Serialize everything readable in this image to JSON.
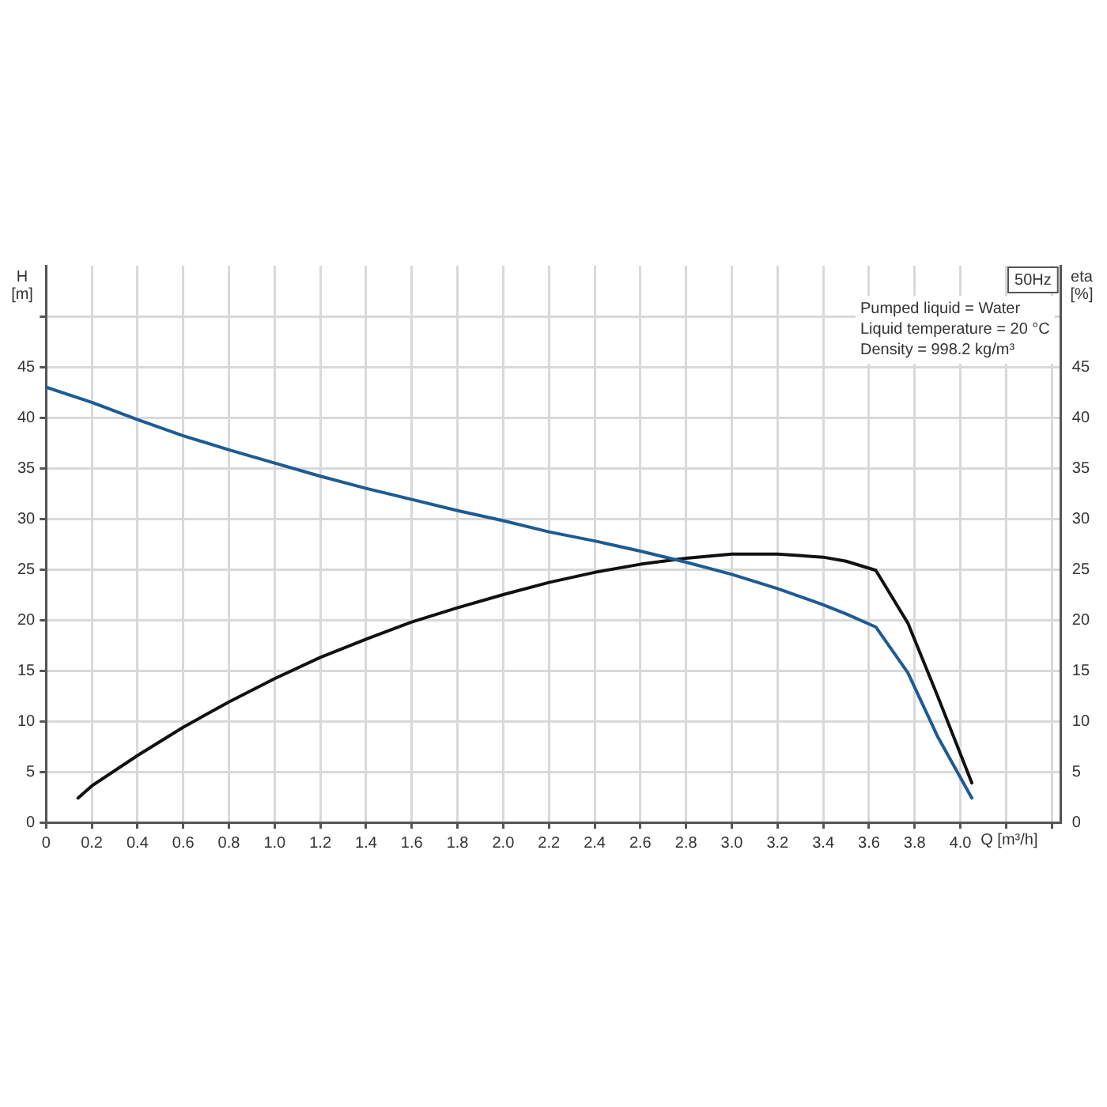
{
  "chart_data": {
    "type": "line",
    "xlabel": "Q [m³/h]",
    "ylabel": "H [m]",
    "y2label": "eta [%]",
    "annotations": [
      "50Hz",
      "Pumped liquid = Water",
      "Liquid temperature = 20 °C",
      "Density = 998.2 kg/m³"
    ],
    "xlim": [
      0,
      4.44
    ],
    "xticks": [
      0,
      {
        "value": 0.2,
        "label": "0.2"
      },
      {
        "value": 0.4,
        "label": "0.4"
      },
      {
        "value": 0.6,
        "label": "0.6"
      },
      {
        "value": 0.8,
        "label": "0.8"
      },
      {
        "value": 1,
        "label": "1.0"
      },
      {
        "value": 1.2,
        "label": "1.2"
      },
      {
        "value": 1.4,
        "label": "1.4"
      },
      {
        "value": 1.6,
        "label": "1.6"
      },
      {
        "value": 1.8,
        "label": "1.8"
      },
      {
        "value": 2,
        "label": "2.0"
      },
      {
        "value": 2.2,
        "label": "2.2"
      },
      {
        "value": 2.4,
        "label": "2.4"
      },
      {
        "value": 2.6,
        "label": "2.6"
      },
      {
        "value": 2.8,
        "label": "2.8"
      },
      {
        "value": 3,
        "label": "3.0"
      },
      {
        "value": 3.2,
        "label": "3.2"
      },
      {
        "value": 3.4,
        "label": "3.4"
      },
      {
        "value": 3.6,
        "label": "3.6"
      },
      {
        "value": 3.8,
        "label": "3.8"
      },
      {
        "value": 4,
        "label": "4.0"
      },
      {
        "value": 4.2,
        "label": null
      },
      {
        "value": 4.4,
        "label": null
      }
    ],
    "ylim": [
      0,
      55
    ],
    "yticks": [
      0,
      5,
      10,
      15,
      20,
      25,
      30,
      35,
      40,
      45,
      {
        "value": 50,
        "label": null
      }
    ],
    "y2lim": [
      0,
      55
    ],
    "y2ticks": [
      0,
      5,
      10,
      15,
      20,
      25,
      30,
      35,
      40,
      45
    ],
    "grid": true,
    "legend": false,
    "marker": "none",
    "line_style": "solid",
    "series": [
      {
        "color": "#1f5b93",
        "x": [
          0,
          0.2,
          0.4,
          0.6,
          0.8,
          1,
          1.2,
          1.4,
          1.6,
          1.8,
          2,
          2.2,
          2.4,
          2.6,
          2.8,
          3,
          3.2,
          3.4,
          3.5,
          3.63,
          3.77,
          3.9,
          4.05
        ],
        "values": [
          43,
          41.5,
          39.8,
          38.2,
          36.8,
          35.5,
          34.2,
          33,
          31.9,
          30.8,
          29.8,
          28.7,
          27.8,
          26.8,
          25.7,
          24.5,
          23.1,
          21.5,
          20.6,
          19.3,
          14.8,
          8.5,
          2.4
        ]
      },
      {
        "color": "#111111",
        "x": [
          0.14,
          0.2,
          0.4,
          0.6,
          0.8,
          1,
          1.2,
          1.4,
          1.6,
          1.8,
          2,
          2.2,
          2.4,
          2.6,
          2.8,
          3,
          3.2,
          3.4,
          3.5,
          3.63,
          3.77,
          3.9,
          4.05
        ],
        "values": [
          2.4,
          3.6,
          6.6,
          9.4,
          11.9,
          14.2,
          16.3,
          18.1,
          19.8,
          21.2,
          22.5,
          23.7,
          24.7,
          25.5,
          26.1,
          26.5,
          26.5,
          26.2,
          25.8,
          24.9,
          19.7,
          12.5,
          3.9
        ]
      }
    ]
  }
}
